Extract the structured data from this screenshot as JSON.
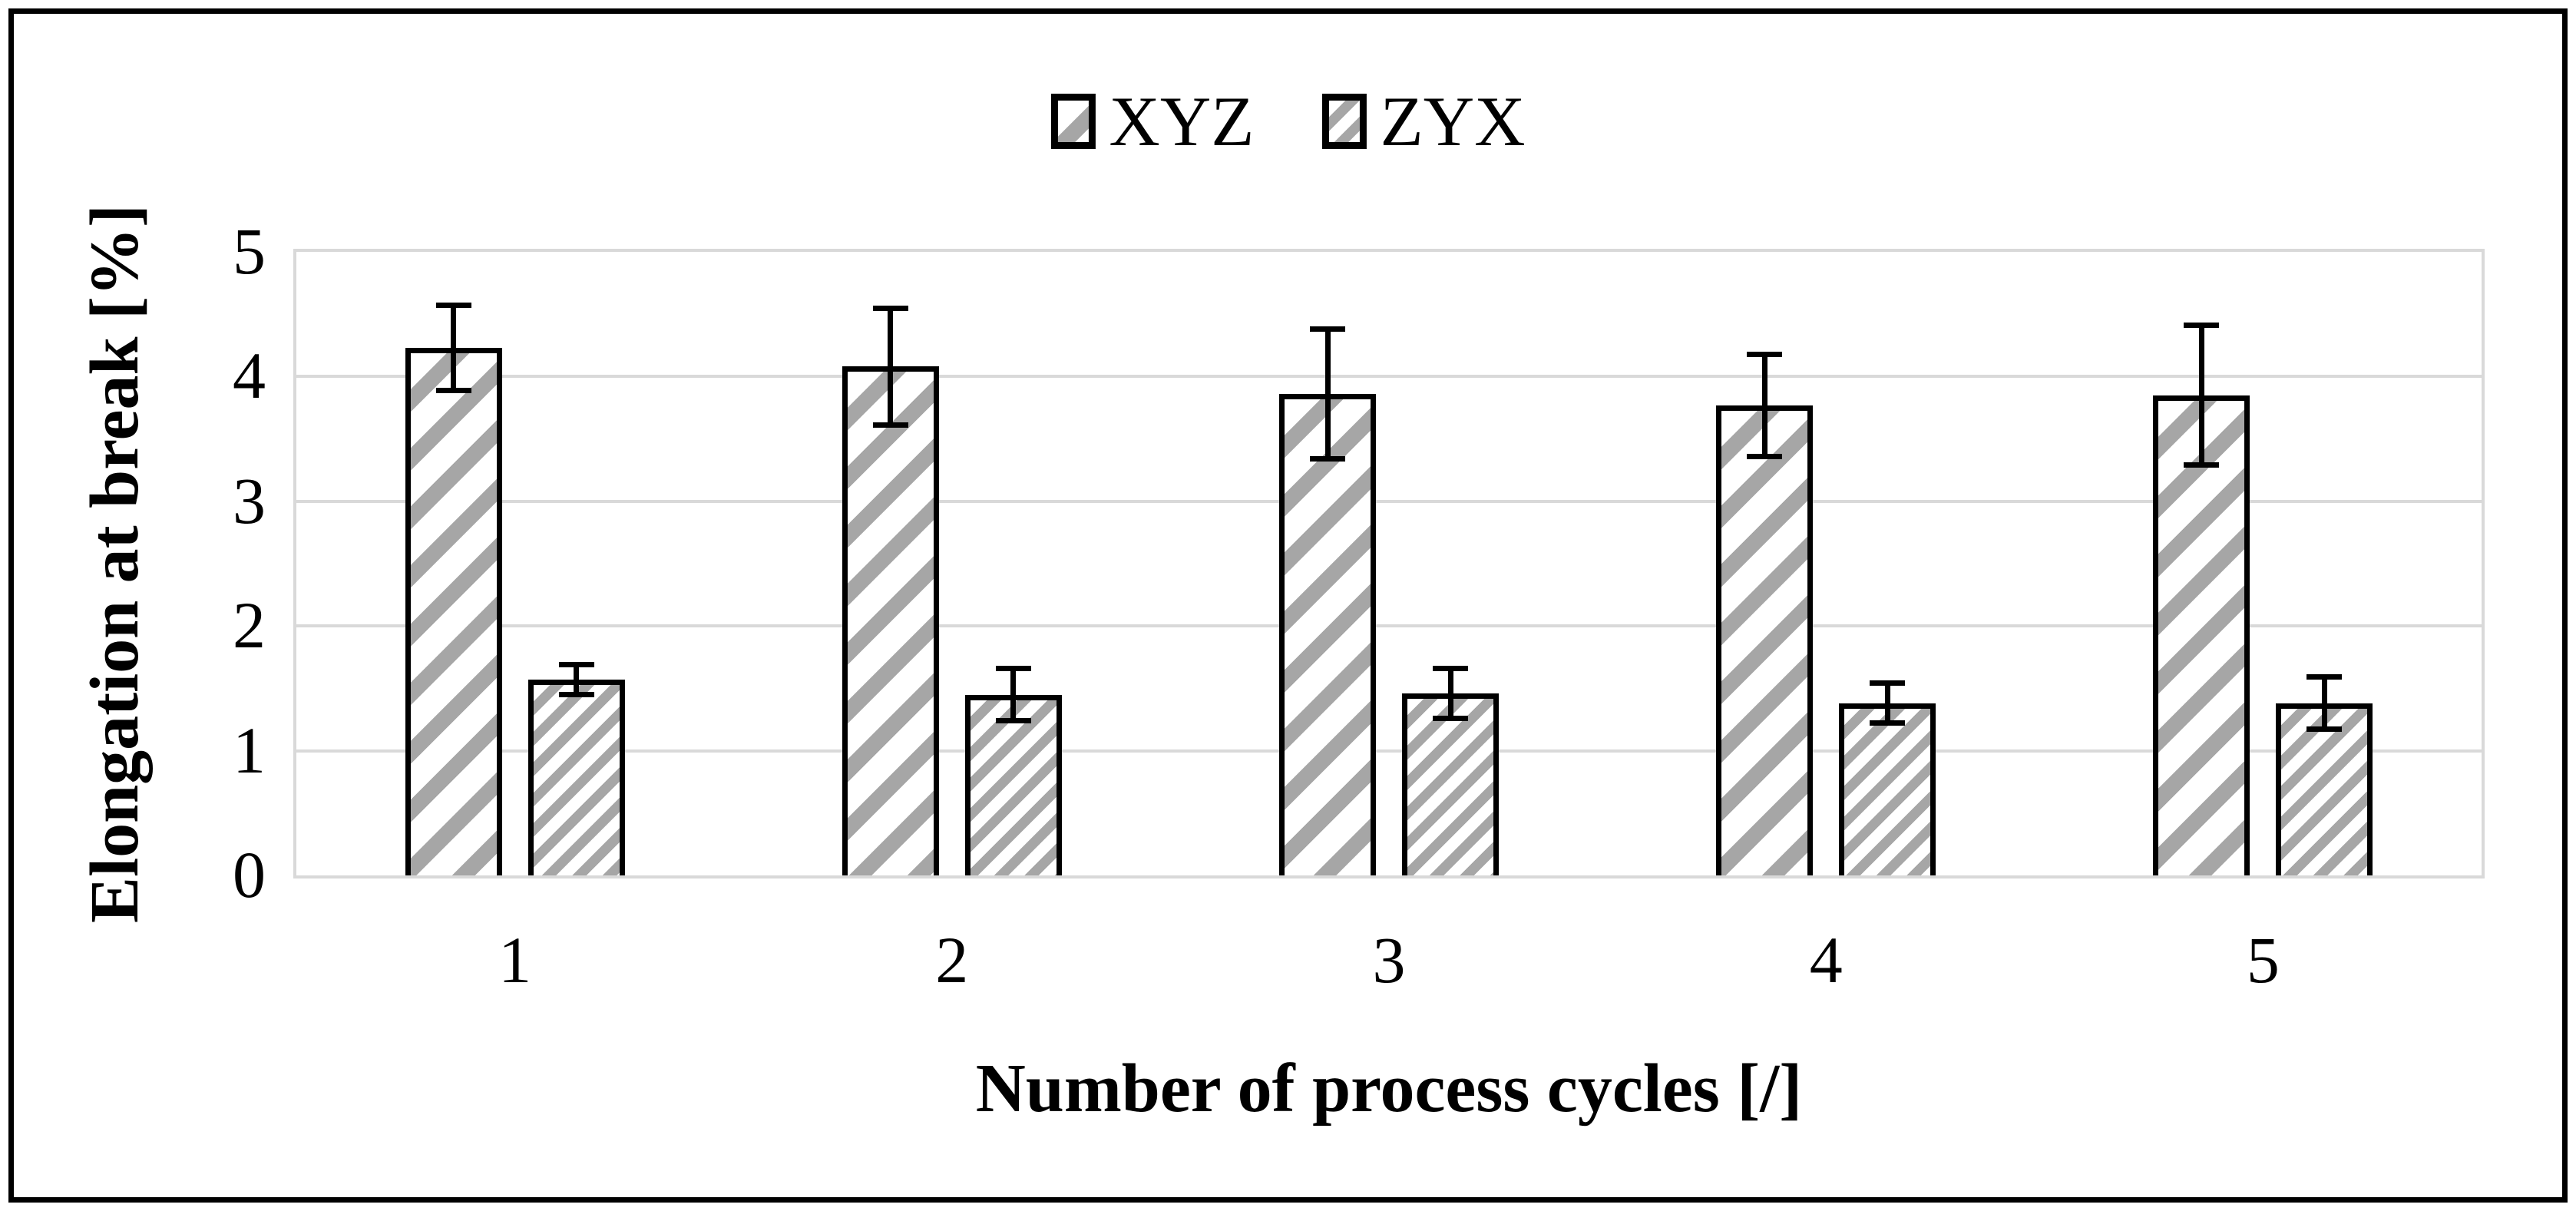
{
  "chart_data": {
    "type": "bar",
    "title": "",
    "categories": [
      "1",
      "2",
      "3",
      "4",
      "5"
    ],
    "series": [
      {
        "name": "XYZ",
        "pattern": "sparse-diagonal-hatch",
        "values": [
          4.23,
          4.08,
          3.86,
          3.77,
          3.85
        ],
        "errors": [
          0.34,
          0.47,
          0.52,
          0.41,
          0.56
        ]
      },
      {
        "name": "ZYX",
        "pattern": "dense-diagonal-hatch",
        "values": [
          1.57,
          1.45,
          1.46,
          1.38,
          1.38
        ],
        "errors": [
          0.12,
          0.21,
          0.2,
          0.16,
          0.21
        ]
      }
    ],
    "xlabel": "Number of process cycles [/]",
    "ylabel": "Elongation at break [%]",
    "ylim": [
      0,
      5
    ],
    "yticks": [
      0,
      1,
      2,
      3,
      4,
      5
    ],
    "grid": "horizontal-gridlines",
    "legend_position": "top-center",
    "error_bars": true
  },
  "colors": {
    "hatch_gray": "#a6a6a6",
    "grid_gray": "#d9d9d9",
    "ink": "#000000",
    "background": "#ffffff"
  }
}
